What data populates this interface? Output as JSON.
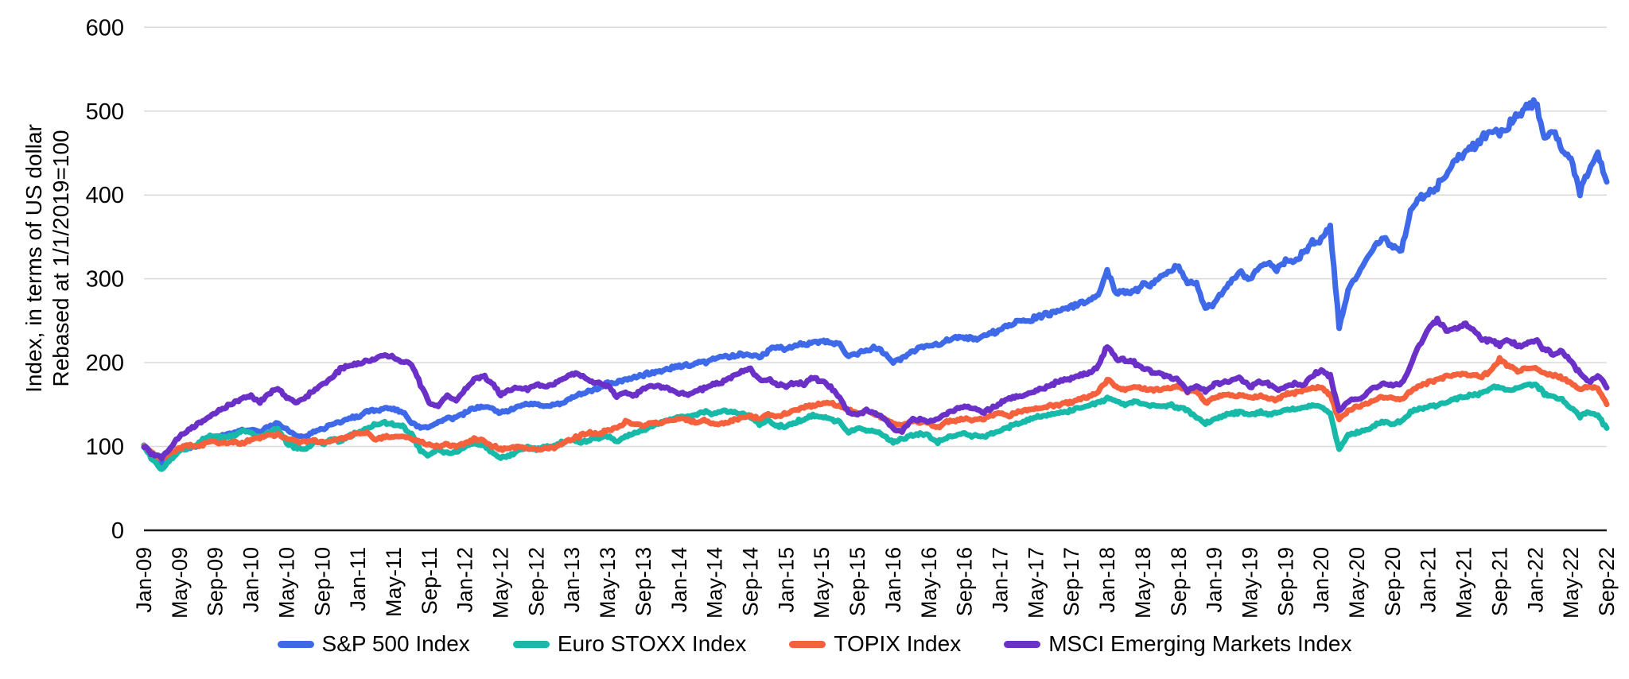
{
  "page": {
    "background": "#ffffff"
  },
  "chart_data": {
    "type": "line",
    "title": "",
    "ylabel_line1": "Index, in terms of US dollar",
    "ylabel_line2": "Rebased at 1/1/2019=100",
    "xlabel": "",
    "x_unit": "month",
    "x_range_months": 164,
    "x_start_label": "Jan-09",
    "x_end_label": "Sep-22",
    "x_tick_every_n_months": 4,
    "x_tick_labels": [
      "Jan-09",
      "May-09",
      "Sep-09",
      "Jan-10",
      "May-10",
      "Sep-10",
      "Jan-11",
      "May-11",
      "Sep-11",
      "Jan-12",
      "May-12",
      "Sep-12",
      "Jan-13",
      "May-13",
      "Sep-13",
      "Jan-14",
      "May-14",
      "Sep-14",
      "Jan-15",
      "May-15",
      "Sep-15",
      "Jan-16",
      "May-16",
      "Sep-16",
      "Jan-17",
      "May-17",
      "Sep-17",
      "Jan-18",
      "May-18",
      "Sep-18",
      "Jan-19",
      "May-19",
      "Sep-19",
      "Jan-20",
      "May-20",
      "Sep-20",
      "Jan-21",
      "May-21",
      "Sep-21",
      "Jan-22",
      "May-22",
      "Sep-22"
    ],
    "y_ticks": [
      0,
      100,
      200,
      300,
      400,
      500,
      600
    ],
    "ylim": [
      0,
      600
    ],
    "grid": "horizontal",
    "gridline_color": "#D9D9D9",
    "axis_color": "#1a1a1a",
    "legend_position": "bottom-center",
    "sampling_note": "monthly values, Jan-2009 through Sep-2022 (165 points per series), read from chart",
    "series": [
      {
        "name": "S&P 500 Index",
        "color": "#3E6AEA",
        "values": [
          100,
          88,
          80,
          88,
          96,
          100,
          99,
          107,
          111,
          113,
          116,
          120,
          121,
          118,
          124,
          128,
          120,
          114,
          111,
          117,
          121,
          126,
          129,
          133,
          136,
          142,
          143,
          146,
          144,
          141,
          129,
          122,
          124,
          129,
          133,
          134,
          140,
          145,
          148,
          146,
          140,
          143,
          147,
          151,
          150,
          148,
          150,
          153,
          158,
          162,
          166,
          171,
          175,
          177,
          180,
          182,
          186,
          188,
          190,
          194,
          196,
          197,
          200,
          201,
          205,
          208,
          207,
          211,
          209,
          207,
          214,
          218,
          216,
          220,
          222,
          223,
          225,
          224,
          222,
          207,
          211,
          214,
          218,
          212,
          201,
          205,
          212,
          217,
          220,
          222,
          227,
          230,
          230,
          228,
          231,
          235,
          240,
          244,
          249,
          251,
          254,
          257,
          260,
          263,
          266,
          270,
          274,
          281,
          309,
          283,
          285,
          286,
          292,
          294,
          300,
          310,
          314,
          295,
          296,
          264,
          272,
          286,
          296,
          310,
          298,
          314,
          318,
          312,
          320,
          322,
          332,
          342,
          348,
          360,
          242,
          286,
          304,
          320,
          338,
          350,
          338,
          336,
          380,
          398,
          400,
          410,
          422,
          443,
          450,
          457,
          468,
          478,
          475,
          481,
          495,
          505,
          512,
          470,
          478,
          455,
          442,
          402,
          430,
          448,
          415
        ]
      },
      {
        "name": "Euro STOXX Index",
        "color": "#17B9A9",
        "values": [
          100,
          84,
          73,
          84,
          94,
          98,
          103,
          111,
          113,
          110,
          113,
          118,
          117,
          110,
          117,
          121,
          104,
          99,
          97,
          105,
          103,
          109,
          106,
          113,
          117,
          122,
          126,
          129,
          127,
          124,
          114,
          95,
          89,
          96,
          92,
          93,
          100,
          104,
          101,
          93,
          87,
          89,
          95,
          99,
          97,
          99,
          101,
          105,
          108,
          105,
          108,
          110,
          112,
          106,
          112,
          116,
          120,
          124,
          128,
          133,
          135,
          136,
          138,
          141,
          139,
          143,
          140,
          139,
          135,
          127,
          131,
          125,
          123,
          129,
          133,
          137,
          135,
          133,
          129,
          117,
          121,
          119,
          117,
          113,
          105,
          109,
          113,
          115,
          113,
          105,
          111,
          113,
          115,
          113,
          111,
          115,
          119,
          123,
          127,
          131,
          135,
          137,
          139,
          141,
          143,
          147,
          149,
          153,
          157,
          155,
          149,
          153,
          151,
          149,
          147,
          149,
          147,
          143,
          135,
          127,
          133,
          137,
          139,
          141,
          137,
          141,
          139,
          141,
          143,
          145,
          147,
          149,
          148,
          139,
          97,
          113,
          117,
          119,
          125,
          129,
          127,
          131,
          141,
          145,
          147,
          149,
          153,
          157,
          159,
          161,
          163,
          169,
          171,
          167,
          169,
          173,
          175,
          163,
          159,
          155,
          147,
          135,
          141,
          137,
          121
        ]
      },
      {
        "name": "TOPIX Index",
        "color": "#F4613C",
        "values": [
          100,
          91,
          85,
          92,
          98,
          102,
          100,
          104,
          106,
          103,
          105,
          104,
          108,
          110,
          113,
          114,
          109,
          107,
          105,
          108,
          105,
          107,
          109,
          112,
          115,
          117,
          108,
          112,
          111,
          112,
          110,
          105,
          102,
          101,
          102,
          100,
          104,
          109,
          107,
          101,
          97,
          99,
          100,
          98,
          97,
          97,
          99,
          103,
          109,
          113,
          117,
          115,
          119,
          123,
          129,
          127,
          125,
          129,
          127,
          131,
          133,
          131,
          129,
          131,
          127,
          129,
          131,
          135,
          137,
          133,
          139,
          136,
          139,
          143,
          147,
          149,
          151,
          152,
          149,
          143,
          139,
          143,
          139,
          133,
          127,
          125,
          131,
          129,
          127,
          123,
          129,
          131,
          133,
          131,
          133,
          137,
          139,
          137,
          141,
          143,
          145,
          147,
          149,
          151,
          153,
          157,
          159,
          165,
          180,
          170,
          168,
          170,
          170,
          167,
          168,
          170,
          173,
          165,
          167,
          152,
          158,
          162,
          160,
          162,
          158,
          160,
          158,
          156,
          162,
          164,
          168,
          170,
          170,
          162,
          132,
          142,
          147,
          151,
          155,
          159,
          158,
          156,
          166,
          172,
          176,
          180,
          184,
          186,
          186,
          185,
          184,
          190,
          204,
          196,
          190,
          192,
          194,
          188,
          186,
          182,
          176,
          168,
          172,
          168,
          151
        ]
      },
      {
        "name": "MSCI Emerging Markets Index",
        "color": "#6A30C8",
        "values": [
          100,
          90,
          87,
          99,
          112,
          120,
          126,
          134,
          140,
          147,
          152,
          158,
          160,
          153,
          162,
          170,
          158,
          152,
          158,
          166,
          174,
          182,
          192,
          196,
          198,
          202,
          205,
          210,
          206,
          202,
          198,
          174,
          152,
          148,
          162,
          154,
          168,
          180,
          184,
          176,
          162,
          168,
          170,
          168,
          174,
          172,
          174,
          182,
          188,
          184,
          178,
          176,
          172,
          160,
          165,
          161,
          169,
          173,
          171,
          168,
          164,
          161,
          167,
          170,
          174,
          178,
          184,
          190,
          192,
          180,
          180,
          174,
          172,
          176,
          174,
          182,
          178,
          171,
          158,
          141,
          137,
          143,
          139,
          133,
          121,
          118,
          131,
          133,
          129,
          133,
          140,
          144,
          148,
          146,
          140,
          145,
          152,
          157,
          160,
          163,
          167,
          169,
          175,
          179,
          181,
          185,
          187,
          195,
          220,
          205,
          202,
          200,
          194,
          188,
          186,
          182,
          180,
          166,
          172,
          166,
          174,
          177,
          179,
          181,
          170,
          177,
          175,
          167,
          171,
          175,
          173,
          184,
          192,
          184,
          141,
          154,
          156,
          162,
          170,
          175,
          172,
          176,
          196,
          222,
          238,
          252,
          238,
          242,
          246,
          240,
          228,
          226,
          222,
          228,
          218,
          222,
          228,
          216,
          210,
          214,
          200,
          188,
          176,
          184,
          172
        ]
      }
    ]
  }
}
